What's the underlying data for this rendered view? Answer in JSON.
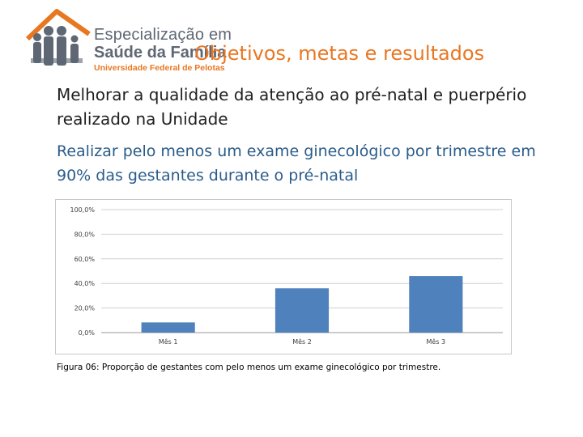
{
  "logo": {
    "line1": "Especialização em",
    "line2": "Saúde da Família",
    "line3": "Universidade Federal de Pelotas"
  },
  "slide": {
    "title": "Objetivos, metas e resultados",
    "subtitle": "Melhorar a qualidade da atenção ao pré-natal e puerpério realizado na Unidade",
    "goal": "Realizar pelo menos um exame ginecológico por trimestre em 90% das gestantes durante o pré-natal",
    "caption": "Figura 06: Proporção de gestantes com pelo menos um exame ginecológico por trimestre."
  },
  "colors": {
    "accent": "#e87722",
    "bar": "#4f81bd",
    "goal_text": "#2a5c8a"
  },
  "chart_data": {
    "type": "bar",
    "categories": [
      "Mês 1",
      "Mês 2",
      "Mês 3"
    ],
    "values": [
      8.3,
      36.0,
      46.0
    ],
    "yticks": [
      "0,0%",
      "20,0%",
      "40,0%",
      "60,0%",
      "80,0%",
      "100,0%"
    ],
    "ylim": [
      0,
      100
    ],
    "grid": true,
    "legend": "none"
  }
}
